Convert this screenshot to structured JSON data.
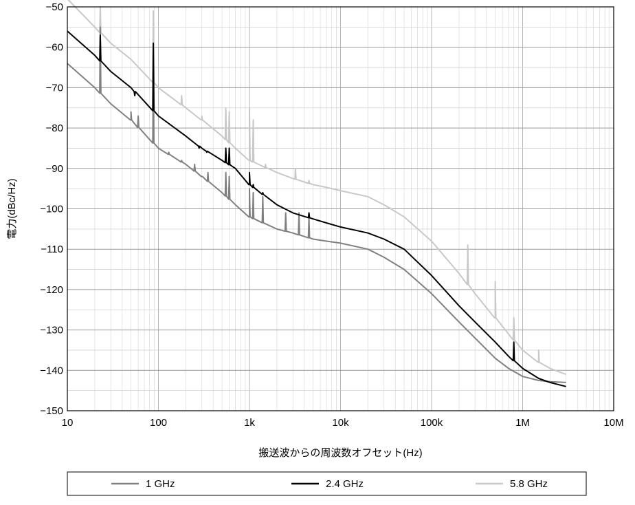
{
  "chart_data": {
    "type": "line",
    "x_scale": "log",
    "xlim": [
      10,
      10000000
    ],
    "ylim": [
      -150,
      -50
    ],
    "grid": true,
    "xlabel": "搬送波からの周波数オフセット(Hz)",
    "ylabel": "電力(dBc/Hz)",
    "x_ticks": [
      {
        "value": 10,
        "label": "10"
      },
      {
        "value": 100,
        "label": "100"
      },
      {
        "value": 1000,
        "label": "1k"
      },
      {
        "value": 10000,
        "label": "10k"
      },
      {
        "value": 100000,
        "label": "100k"
      },
      {
        "value": 1000000,
        "label": "1M"
      },
      {
        "value": 10000000,
        "label": "10M"
      }
    ],
    "y_ticks": [
      {
        "value": -50,
        "label": "−50"
      },
      {
        "value": -60,
        "label": "−60"
      },
      {
        "value": -70,
        "label": "−70"
      },
      {
        "value": -80,
        "label": "−80"
      },
      {
        "value": -90,
        "label": "−90"
      },
      {
        "value": -100,
        "label": "−100"
      },
      {
        "value": -110,
        "label": "−110"
      },
      {
        "value": -120,
        "label": "−120"
      },
      {
        "value": -130,
        "label": "−130"
      },
      {
        "value": -140,
        "label": "−140"
      },
      {
        "value": -150,
        "label": "−150"
      }
    ],
    "legend_position": "bottom",
    "series": [
      {
        "name": "1 GHz",
        "color": "#808080",
        "points": [
          [
            10,
            -64
          ],
          [
            20,
            -70
          ],
          [
            30,
            -74
          ],
          [
            50,
            -78
          ],
          [
            100,
            -85
          ],
          [
            200,
            -89
          ],
          [
            300,
            -92
          ],
          [
            500,
            -96
          ],
          [
            700,
            -99
          ],
          [
            1000,
            -102
          ],
          [
            2000,
            -105
          ],
          [
            3000,
            -106
          ],
          [
            5000,
            -107.5
          ],
          [
            7000,
            -108
          ],
          [
            10000,
            -108.5
          ],
          [
            20000,
            -110
          ],
          [
            30000,
            -112
          ],
          [
            50000,
            -115
          ],
          [
            100000,
            -121
          ],
          [
            200000,
            -128
          ],
          [
            300000,
            -132
          ],
          [
            500000,
            -137
          ],
          [
            700000,
            -139.5
          ],
          [
            1000000,
            -141.5
          ],
          [
            1500000,
            -142.5
          ],
          [
            2000000,
            -142.8
          ],
          [
            3000000,
            -143
          ]
        ],
        "spikes": [
          [
            23,
            -55
          ],
          [
            50,
            -76
          ],
          [
            60,
            -77
          ],
          [
            88,
            -66
          ],
          [
            130,
            -86
          ],
          [
            180,
            -88
          ],
          [
            250,
            -89
          ],
          [
            300,
            -92
          ],
          [
            350,
            -91
          ],
          [
            550,
            -91
          ],
          [
            600,
            -92
          ],
          [
            1000,
            -95
          ],
          [
            1100,
            -96
          ],
          [
            1400,
            -97
          ],
          [
            2500,
            -101
          ],
          [
            3500,
            -101
          ],
          [
            4500,
            -102
          ]
        ]
      },
      {
        "name": "2.4 GHz",
        "color": "#000000",
        "points": [
          [
            10,
            -56
          ],
          [
            20,
            -62
          ],
          [
            30,
            -66
          ],
          [
            50,
            -70
          ],
          [
            100,
            -77
          ],
          [
            200,
            -82
          ],
          [
            300,
            -85
          ],
          [
            500,
            -88
          ],
          [
            700,
            -90
          ],
          [
            1000,
            -94
          ],
          [
            2000,
            -99
          ],
          [
            3000,
            -101
          ],
          [
            5000,
            -102.5
          ],
          [
            7000,
            -103.5
          ],
          [
            10000,
            -104.5
          ],
          [
            20000,
            -106
          ],
          [
            30000,
            -107.5
          ],
          [
            50000,
            -110
          ],
          [
            100000,
            -116.5
          ],
          [
            200000,
            -124
          ],
          [
            300000,
            -128
          ],
          [
            500000,
            -133
          ],
          [
            700000,
            -136.5
          ],
          [
            1000000,
            -139.5
          ],
          [
            1500000,
            -142
          ],
          [
            2000000,
            -143
          ],
          [
            3000000,
            -144
          ]
        ],
        "spikes": [
          [
            23,
            -57
          ],
          [
            55,
            -72
          ],
          [
            88,
            -59
          ],
          [
            280,
            -85
          ],
          [
            340,
            -86
          ],
          [
            550,
            -85
          ],
          [
            600,
            -85
          ],
          [
            1000,
            -91
          ],
          [
            1100,
            -94
          ],
          [
            1400,
            -96
          ],
          [
            4500,
            -101
          ],
          [
            800000,
            -133
          ]
        ]
      },
      {
        "name": "5.8 GHz",
        "color": "#c8c8c8",
        "points": [
          [
            10,
            -48
          ],
          [
            20,
            -55
          ],
          [
            30,
            -59
          ],
          [
            50,
            -63
          ],
          [
            100,
            -70
          ],
          [
            200,
            -75
          ],
          [
            300,
            -78
          ],
          [
            500,
            -82
          ],
          [
            700,
            -85
          ],
          [
            1000,
            -88
          ],
          [
            2000,
            -91
          ],
          [
            3000,
            -92.5
          ],
          [
            5000,
            -94
          ],
          [
            7000,
            -94.7
          ],
          [
            10000,
            -95.5
          ],
          [
            20000,
            -97
          ],
          [
            30000,
            -99
          ],
          [
            50000,
            -102
          ],
          [
            100000,
            -108
          ],
          [
            200000,
            -116
          ],
          [
            300000,
            -121
          ],
          [
            500000,
            -127
          ],
          [
            700000,
            -131
          ],
          [
            1000000,
            -135
          ],
          [
            1500000,
            -138
          ],
          [
            2000000,
            -139.5
          ],
          [
            3000000,
            -141
          ]
        ],
        "spikes": [
          [
            23,
            -50
          ],
          [
            88,
            -51
          ],
          [
            180,
            -72
          ],
          [
            300,
            -77
          ],
          [
            550,
            -75
          ],
          [
            600,
            -76
          ],
          [
            1000,
            -75
          ],
          [
            1100,
            -78
          ],
          [
            1500,
            -89
          ],
          [
            3200,
            -90
          ],
          [
            4500,
            -93
          ],
          [
            250000,
            -109
          ],
          [
            500000,
            -118
          ],
          [
            800000,
            -127
          ],
          [
            1500000,
            -135
          ]
        ]
      }
    ]
  }
}
